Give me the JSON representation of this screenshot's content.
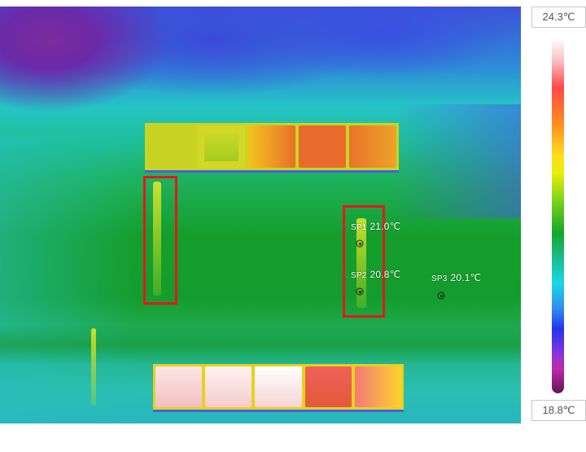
{
  "scale": {
    "max_temp": "24.3℃",
    "min_temp": "18.8℃",
    "palette": [
      "#ffffff",
      "#ff4a4a",
      "#ff8a1e",
      "#ffdc1e",
      "#12a82a",
      "#18d8e8",
      "#2434ec",
      "#c02aa8",
      "#5e1458"
    ]
  },
  "spots": [
    {
      "name": "SP1",
      "temp": "21.0℃"
    },
    {
      "name": "SP2",
      "temp": "20.8℃"
    },
    {
      "name": "SP3",
      "temp": "20.1℃"
    }
  ],
  "annotation_color": "#e4181c"
}
